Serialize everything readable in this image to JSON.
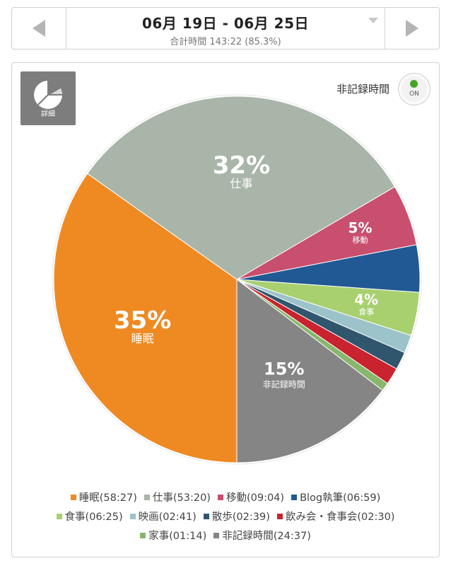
{
  "header": {
    "date_range": "06月 19日 - 06月 25日",
    "total": "合計時間 143:22 (85.3%)"
  },
  "controls": {
    "detail_label": "詳細",
    "toggle_label": "非記録時間",
    "toggle_state": "ON"
  },
  "chart_data": {
    "type": "pie",
    "slices": [
      {
        "name": "睡眠",
        "duration": "58:27",
        "percent": 35,
        "pct_label": "35%",
        "color": "#ef8a23"
      },
      {
        "name": "仕事",
        "duration": "53:20",
        "percent": 32,
        "pct_label": "32%",
        "color": "#a9b5a8"
      },
      {
        "name": "移動",
        "duration": "09:04",
        "percent": 5,
        "pct_label": "5%",
        "color": "#c94f6f"
      },
      {
        "name": "Blog執筆",
        "duration": "06:59",
        "percent": 4,
        "color": "#205993"
      },
      {
        "name": "食事",
        "duration": "06:25",
        "percent": 4,
        "pct_label": "4%",
        "color": "#a9d06f"
      },
      {
        "name": "映画",
        "duration": "02:41",
        "percent": 2,
        "color": "#9cc3c9"
      },
      {
        "name": "散歩",
        "duration": "02:39",
        "percent": 2,
        "color": "#2f566d"
      },
      {
        "name": "飲み会・食事会",
        "duration": "02:30",
        "percent": 1,
        "color": "#c8232e"
      },
      {
        "name": "家事",
        "duration": "01:14",
        "percent": 1,
        "color": "#88b66b"
      },
      {
        "name": "非記録時間",
        "duration": "24:37",
        "percent": 15,
        "pct_label": "15%",
        "color": "#858585"
      }
    ],
    "legend_rows": [
      [
        0,
        1,
        2,
        3
      ],
      [
        4,
        5,
        6,
        7
      ],
      [
        8,
        9
      ]
    ]
  }
}
